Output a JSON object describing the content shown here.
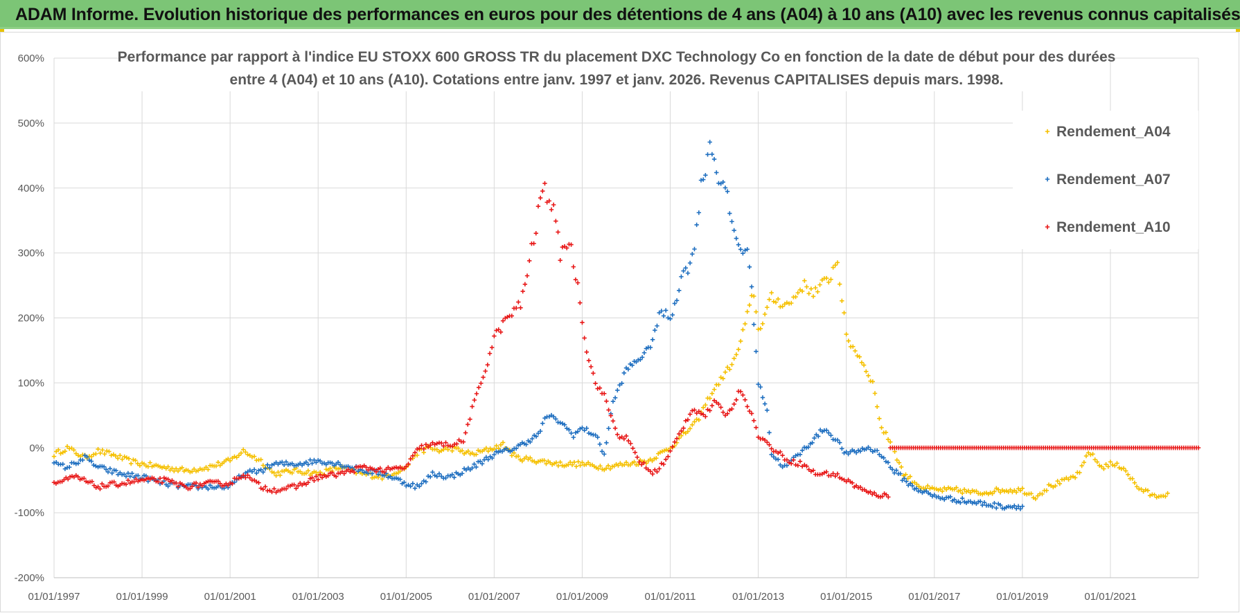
{
  "banner": {
    "title": "ADAM Informe. Evolution historique des performances en euros pour des détentions de 4 ans (A04) à 10 ans (A10) avec les revenus connus capitalisés",
    "background": "#7cc576"
  },
  "chart_data": {
    "type": "scatter",
    "title_line1": "Performance par rapport à l'indice EU STOXX 600 GROSS TR  du placement DXC Technology Co en fonction de la date de début pour des durées",
    "title_line2": "entre 4 (A04) et 10 ans (A10). Cotations entre janv. 1997 et janv. 2026. Revenus CAPITALISES depuis mars. 1998.",
    "xlabel": "",
    "ylabel": "",
    "xlim": [
      1997.0,
      2023.0
    ],
    "ylim": [
      -200,
      600
    ],
    "y_ticks": [
      {
        "v": 600,
        "label": "600%"
      },
      {
        "v": 500,
        "label": "500%"
      },
      {
        "v": 400,
        "label": "400%"
      },
      {
        "v": 300,
        "label": "300%"
      },
      {
        "v": 200,
        "label": "200%"
      },
      {
        "v": 100,
        "label": "100%"
      },
      {
        "v": 0,
        "label": "0%"
      },
      {
        "v": -100,
        "label": "-100%"
      },
      {
        "v": -200,
        "label": "-200%"
      }
    ],
    "x_ticks": [
      {
        "v": 1997,
        "label": "01/01/1997"
      },
      {
        "v": 1999,
        "label": "01/01/1999"
      },
      {
        "v": 2001,
        "label": "01/01/2001"
      },
      {
        "v": 2003,
        "label": "01/01/2003"
      },
      {
        "v": 2005,
        "label": "01/01/2005"
      },
      {
        "v": 2007,
        "label": "01/01/2007"
      },
      {
        "v": 2009,
        "label": "01/01/2009"
      },
      {
        "v": 2011,
        "label": "01/01/2011"
      },
      {
        "v": 2013,
        "label": "01/01/2013"
      },
      {
        "v": 2015,
        "label": "01/01/2015"
      },
      {
        "v": 2017,
        "label": "01/01/2017"
      },
      {
        "v": 2019,
        "label": "01/01/2019"
      },
      {
        "v": 2021,
        "label": "01/01/2021"
      }
    ],
    "grid": true,
    "legend_position": "top-right",
    "series": [
      {
        "name": "Rendement_A04",
        "color": "#f5c000",
        "points": [
          [
            1997.0,
            -10
          ],
          [
            1997.3,
            0
          ],
          [
            1997.7,
            -15
          ],
          [
            1998.0,
            -5
          ],
          [
            1998.3,
            -10
          ],
          [
            1998.7,
            -20
          ],
          [
            1999.0,
            -25
          ],
          [
            1999.5,
            -30
          ],
          [
            2000.0,
            -35
          ],
          [
            2000.5,
            -30
          ],
          [
            2001.0,
            -20
          ],
          [
            2001.3,
            -5
          ],
          [
            2001.7,
            -20
          ],
          [
            2002.0,
            -40
          ],
          [
            2002.5,
            -35
          ],
          [
            2003.0,
            -40
          ],
          [
            2003.5,
            -30
          ],
          [
            2004.0,
            -40
          ],
          [
            2004.5,
            -45
          ],
          [
            2005.0,
            -30
          ],
          [
            2005.2,
            -10
          ],
          [
            2005.5,
            0
          ],
          [
            2005.8,
            -5
          ],
          [
            2006.0,
            0
          ],
          [
            2006.5,
            -10
          ],
          [
            2007.0,
            0
          ],
          [
            2007.2,
            5
          ],
          [
            2007.5,
            -15
          ],
          [
            2008.0,
            -20
          ],
          [
            2008.5,
            -25
          ],
          [
            2009.0,
            -25
          ],
          [
            2009.5,
            -30
          ],
          [
            2010.0,
            -25
          ],
          [
            2010.5,
            -20
          ],
          [
            2011.0,
            0
          ],
          [
            2011.3,
            20
          ],
          [
            2011.6,
            40
          ],
          [
            2011.9,
            80
          ],
          [
            2012.2,
            110
          ],
          [
            2012.5,
            140
          ],
          [
            2012.7,
            190
          ],
          [
            2012.9,
            240
          ],
          [
            2013.0,
            180
          ],
          [
            2013.3,
            230
          ],
          [
            2013.7,
            220
          ],
          [
            2014.0,
            250
          ],
          [
            2014.3,
            240
          ],
          [
            2014.6,
            260
          ],
          [
            2014.8,
            290
          ],
          [
            2015.0,
            170
          ],
          [
            2015.3,
            140
          ],
          [
            2015.6,
            100
          ],
          [
            2015.8,
            30
          ],
          [
            2016.0,
            10
          ],
          [
            2016.3,
            -40
          ],
          [
            2016.7,
            -60
          ],
          [
            2017.0,
            -65
          ],
          [
            2017.5,
            -65
          ],
          [
            2018.0,
            -70
          ],
          [
            2018.5,
            -65
          ],
          [
            2019.0,
            -65
          ],
          [
            2019.3,
            -75
          ],
          [
            2019.6,
            -60
          ],
          [
            2020.0,
            -50
          ],
          [
            2020.3,
            -40
          ],
          [
            2020.5,
            -5
          ],
          [
            2020.8,
            -30
          ],
          [
            2021.0,
            -25
          ],
          [
            2021.3,
            -30
          ],
          [
            2021.6,
            -60
          ],
          [
            2022.0,
            -75
          ],
          [
            2022.3,
            -70
          ]
        ]
      },
      {
        "name": "Rendement_A07",
        "color": "#1f6fc0",
        "points": [
          [
            1997.0,
            -25
          ],
          [
            1997.3,
            -30
          ],
          [
            1997.7,
            -15
          ],
          [
            1998.0,
            -30
          ],
          [
            1998.5,
            -40
          ],
          [
            1999.0,
            -45
          ],
          [
            1999.5,
            -55
          ],
          [
            2000.0,
            -60
          ],
          [
            2000.5,
            -60
          ],
          [
            2001.0,
            -60
          ],
          [
            2001.3,
            -40
          ],
          [
            2001.7,
            -35
          ],
          [
            2002.0,
            -25
          ],
          [
            2002.5,
            -25
          ],
          [
            2003.0,
            -20
          ],
          [
            2003.5,
            -25
          ],
          [
            2004.0,
            -35
          ],
          [
            2004.5,
            -40
          ],
          [
            2005.0,
            -55
          ],
          [
            2005.3,
            -60
          ],
          [
            2005.6,
            -40
          ],
          [
            2006.0,
            -45
          ],
          [
            2006.5,
            -30
          ],
          [
            2007.0,
            -10
          ],
          [
            2007.5,
            0
          ],
          [
            2008.0,
            20
          ],
          [
            2008.2,
            50
          ],
          [
            2008.5,
            40
          ],
          [
            2008.8,
            20
          ],
          [
            2009.0,
            30
          ],
          [
            2009.3,
            20
          ],
          [
            2009.5,
            -10
          ],
          [
            2009.7,
            70
          ],
          [
            2010.0,
            120
          ],
          [
            2010.5,
            150
          ],
          [
            2010.8,
            210
          ],
          [
            2011.0,
            200
          ],
          [
            2011.3,
            270
          ],
          [
            2011.5,
            290
          ],
          [
            2011.7,
            400
          ],
          [
            2011.9,
            470
          ],
          [
            2012.1,
            420
          ],
          [
            2012.3,
            380
          ],
          [
            2012.5,
            320
          ],
          [
            2012.8,
            290
          ],
          [
            2013.0,
            100
          ],
          [
            2013.2,
            60
          ],
          [
            2013.3,
            -10
          ],
          [
            2013.6,
            -30
          ],
          [
            2014.0,
            -5
          ],
          [
            2014.5,
            30
          ],
          [
            2014.8,
            10
          ],
          [
            2015.0,
            -10
          ],
          [
            2015.5,
            0
          ],
          [
            2015.8,
            -10
          ],
          [
            2016.0,
            -30
          ],
          [
            2016.5,
            -60
          ],
          [
            2017.0,
            -75
          ],
          [
            2017.5,
            -80
          ],
          [
            2018.0,
            -85
          ],
          [
            2018.5,
            -90
          ],
          [
            2019.0,
            -90
          ]
        ]
      },
      {
        "name": "Rendement_A10",
        "color": "#e81818",
        "points": [
          [
            1997.0,
            -55
          ],
          [
            1997.5,
            -45
          ],
          [
            1998.0,
            -60
          ],
          [
            1998.5,
            -55
          ],
          [
            1999.0,
            -50
          ],
          [
            1999.5,
            -50
          ],
          [
            2000.0,
            -60
          ],
          [
            2000.5,
            -55
          ],
          [
            2001.0,
            -55
          ],
          [
            2001.3,
            -40
          ],
          [
            2001.7,
            -60
          ],
          [
            2002.0,
            -65
          ],
          [
            2002.5,
            -60
          ],
          [
            2003.0,
            -45
          ],
          [
            2003.5,
            -40
          ],
          [
            2004.0,
            -30
          ],
          [
            2004.5,
            -35
          ],
          [
            2005.0,
            -30
          ],
          [
            2005.3,
            0
          ],
          [
            2005.6,
            5
          ],
          [
            2006.0,
            5
          ],
          [
            2006.3,
            10
          ],
          [
            2006.5,
            60
          ],
          [
            2006.8,
            120
          ],
          [
            2007.0,
            170
          ],
          [
            2007.3,
            200
          ],
          [
            2007.6,
            220
          ],
          [
            2007.9,
            320
          ],
          [
            2008.1,
            400
          ],
          [
            2008.3,
            380
          ],
          [
            2008.5,
            300
          ],
          [
            2008.7,
            320
          ],
          [
            2008.9,
            250
          ],
          [
            2009.1,
            150
          ],
          [
            2009.3,
            100
          ],
          [
            2009.5,
            80
          ],
          [
            2009.8,
            20
          ],
          [
            2010.0,
            15
          ],
          [
            2010.3,
            -20
          ],
          [
            2010.6,
            -40
          ],
          [
            2010.9,
            -20
          ],
          [
            2011.2,
            20
          ],
          [
            2011.5,
            60
          ],
          [
            2011.8,
            50
          ],
          [
            2012.0,
            70
          ],
          [
            2012.3,
            50
          ],
          [
            2012.6,
            90
          ],
          [
            2012.8,
            60
          ],
          [
            2013.0,
            20
          ],
          [
            2013.3,
            0
          ],
          [
            2013.7,
            -20
          ],
          [
            2014.0,
            -25
          ],
          [
            2014.3,
            -40
          ],
          [
            2014.7,
            -40
          ],
          [
            2015.0,
            -50
          ],
          [
            2015.5,
            -70
          ],
          [
            2016.0,
            -75
          ],
          [
            2016.0,
            0
          ],
          [
            2017.0,
            0
          ],
          [
            2018.0,
            0
          ],
          [
            2019.0,
            0
          ],
          [
            2020.0,
            0
          ],
          [
            2021.0,
            0
          ],
          [
            2022.0,
            0
          ],
          [
            2023.0,
            0
          ]
        ]
      }
    ]
  }
}
